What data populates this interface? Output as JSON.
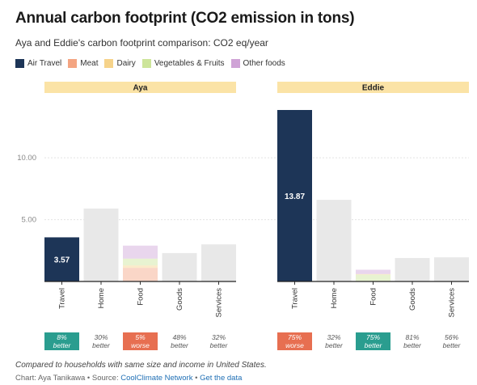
{
  "header": {
    "title": "Annual carbon footprint (CO2 emission in tons)",
    "subtitle": "Aya and Eddie's carbon footprint comparison: CO2 eq/year"
  },
  "legend": [
    {
      "label": "Air Travel",
      "color": "#1d3557"
    },
    {
      "label": "Meat",
      "color": "#f4a582"
    },
    {
      "label": "Dairy",
      "color": "#f6d38a"
    },
    {
      "label": "Vegetables & Fruits",
      "color": "#cde59a"
    },
    {
      "label": "Other foods",
      "color": "#cfa3d6"
    }
  ],
  "chart_data": {
    "type": "bar",
    "stacked": true,
    "ylim": [
      0,
      14
    ],
    "yticks": [
      "5.00",
      "10.00"
    ],
    "ytick_values": [
      5,
      10
    ],
    "grid": true,
    "categories": [
      "Travel",
      "Home",
      "Food",
      "Goods",
      "Services"
    ],
    "panels": [
      {
        "name": "Aya",
        "bars": [
          {
            "category": "Travel",
            "segments": [
              {
                "series": "Air Travel",
                "value": 3.57
              }
            ],
            "label": "3.57",
            "color": "#1d3557"
          },
          {
            "category": "Home",
            "segments": [
              {
                "series": "Total",
                "value": 5.9
              }
            ],
            "color": "#e8e8e8"
          },
          {
            "category": "Food",
            "segments": [
              {
                "series": "Meat",
                "value": 1.1
              },
              {
                "series": "Dairy",
                "value": 0.2
              },
              {
                "series": "Vegetables & Fruits",
                "value": 0.55
              },
              {
                "series": "Other foods",
                "value": 1.05
              }
            ]
          },
          {
            "category": "Goods",
            "segments": [
              {
                "series": "Total",
                "value": 2.3
              }
            ],
            "color": "#e8e8e8"
          },
          {
            "category": "Services",
            "segments": [
              {
                "series": "Total",
                "value": 3.0
              }
            ],
            "color": "#e8e8e8"
          }
        ],
        "comparisons": [
          {
            "pct": "8%",
            "word": "better",
            "badge": "good"
          },
          {
            "pct": "30%",
            "word": "better",
            "badge": "none"
          },
          {
            "pct": "5%",
            "word": "worse",
            "badge": "bad"
          },
          {
            "pct": "48%",
            "word": "better",
            "badge": "none"
          },
          {
            "pct": "32%",
            "word": "better",
            "badge": "none"
          }
        ]
      },
      {
        "name": "Eddie",
        "bars": [
          {
            "category": "Travel",
            "segments": [
              {
                "series": "Air Travel",
                "value": 13.87
              }
            ],
            "label": "13.87",
            "color": "#1d3557"
          },
          {
            "category": "Home",
            "segments": [
              {
                "series": "Total",
                "value": 6.6
              }
            ],
            "color": "#e8e8e8"
          },
          {
            "category": "Food",
            "segments": [
              {
                "series": "Vegetables & Fruits",
                "value": 0.55
              },
              {
                "series": "Dairy",
                "value": 0.05
              },
              {
                "series": "Other foods",
                "value": 0.35
              }
            ]
          },
          {
            "category": "Goods",
            "segments": [
              {
                "series": "Total",
                "value": 1.9
              }
            ],
            "color": "#e8e8e8"
          },
          {
            "category": "Services",
            "segments": [
              {
                "series": "Total",
                "value": 1.95
              }
            ],
            "color": "#e8e8e8"
          }
        ],
        "comparisons": [
          {
            "pct": "75%",
            "word": "worse",
            "badge": "bad"
          },
          {
            "pct": "32%",
            "word": "better",
            "badge": "none"
          },
          {
            "pct": "75%",
            "word": "better",
            "badge": "good"
          },
          {
            "pct": "81%",
            "word": "better",
            "badge": "none"
          },
          {
            "pct": "56%",
            "word": "better",
            "badge": "none"
          }
        ]
      }
    ]
  },
  "colors": {
    "panel_header": "#fbe3a6",
    "badge_good": "#2a9d8f",
    "badge_bad": "#e76f51",
    "neutral_bar": "#e8e8e8"
  },
  "footnote": "Compared to households with same size and income in United States.",
  "credits": {
    "prefix": "Chart: Aya Tanikawa • Source: ",
    "source": "CoolClimate Network",
    "sep": " • ",
    "data_link": "Get the data"
  }
}
